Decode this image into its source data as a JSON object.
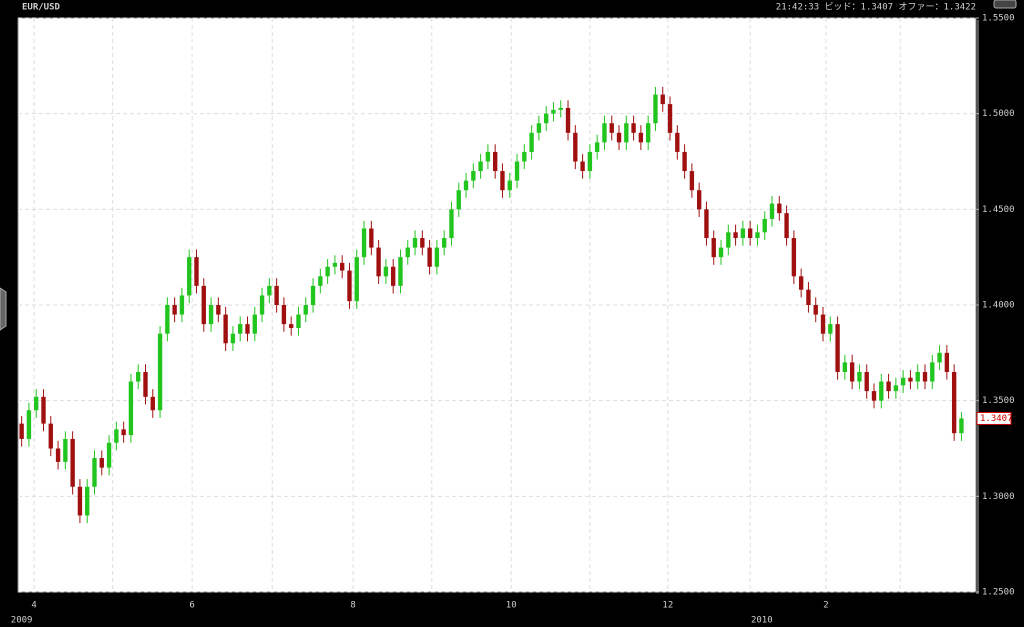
{
  "chart_data": {
    "type": "candlestick",
    "symbol": "EUR/USD",
    "status": "21:42:33 ビッド：1.3407 オファー：1.3422",
    "price_tag": "1.3407",
    "up_color": "#22c41e",
    "down_color": "#a01010",
    "grid": true,
    "xlim": [
      -0.5,
      131
    ],
    "xticks": [
      {
        "value": 1.7,
        "label": "4"
      },
      {
        "value": 23.4,
        "label": "6"
      },
      {
        "value": 45.5,
        "label": "8"
      },
      {
        "value": 67.2,
        "label": "10"
      },
      {
        "value": 88.7,
        "label": "12"
      },
      {
        "value": 110.4,
        "label": "2"
      }
    ],
    "xminor": [
      12.5,
      34.4,
      56.3,
      78.0,
      100.0,
      120.6
    ],
    "year_labels": [
      {
        "value": 0,
        "label": "2009"
      },
      {
        "value": 101.6,
        "label": "2010"
      }
    ],
    "ylim": [
      1.25,
      1.55
    ],
    "yticks": [
      {
        "value": 1.25,
        "label": "1.2500"
      },
      {
        "value": 1.3,
        "label": "1.3000"
      },
      {
        "value": 1.35,
        "label": "1.3500"
      },
      {
        "value": 1.4,
        "label": "1.4000"
      },
      {
        "value": 1.45,
        "label": "1.4500"
      },
      {
        "value": 1.5,
        "label": "1.5000"
      },
      {
        "value": 1.55,
        "label": "1.5500"
      }
    ],
    "open": [
      1.338,
      1.33,
      1.345,
      1.352,
      1.338,
      1.325,
      1.318,
      1.33,
      1.305,
      1.29,
      1.305,
      1.32,
      1.315,
      1.328,
      1.335,
      1.332,
      1.36,
      1.365,
      1.352,
      1.345,
      1.385,
      1.4,
      1.395,
      1.405,
      1.425,
      1.41,
      1.39,
      1.4,
      1.395,
      1.38,
      1.385,
      1.39,
      1.385,
      1.395,
      1.405,
      1.41,
      1.4,
      1.39,
      1.388,
      1.395,
      1.4,
      1.41,
      1.415,
      1.42,
      1.422,
      1.418,
      1.402,
      1.425,
      1.44,
      1.43,
      1.415,
      1.42,
      1.41,
      1.425,
      1.43,
      1.435,
      1.43,
      1.42,
      1.43,
      1.435,
      1.45,
      1.46,
      1.465,
      1.47,
      1.475,
      1.48,
      1.47,
      1.46,
      1.465,
      1.475,
      1.48,
      1.49,
      1.495,
      1.5,
      1.502,
      1.503,
      1.49,
      1.475,
      1.47,
      1.48,
      1.485,
      1.495,
      1.49,
      1.485,
      1.495,
      1.49,
      1.485,
      1.495,
      1.51,
      1.505,
      1.49,
      1.48,
      1.47,
      1.46,
      1.45,
      1.435,
      1.425,
      1.43,
      1.438,
      1.435,
      1.44,
      1.435,
      1.438,
      1.445,
      1.453,
      1.448,
      1.435,
      1.415,
      1.408,
      1.4,
      1.395,
      1.385,
      1.39,
      1.365,
      1.37,
      1.36,
      1.365,
      1.355,
      1.35,
      1.36,
      1.355,
      1.358,
      1.362,
      1.36,
      1.365,
      1.36,
      1.37,
      1.375,
      1.365,
      1.333
    ],
    "high": [
      1.342,
      1.349,
      1.356,
      1.356,
      1.342,
      1.329,
      1.334,
      1.334,
      1.309,
      1.309,
      1.324,
      1.324,
      1.332,
      1.339,
      1.339,
      1.364,
      1.369,
      1.369,
      1.356,
      1.389,
      1.404,
      1.404,
      1.409,
      1.429,
      1.429,
      1.414,
      1.404,
      1.404,
      1.399,
      1.389,
      1.394,
      1.394,
      1.399,
      1.409,
      1.414,
      1.414,
      1.404,
      1.394,
      1.399,
      1.404,
      1.414,
      1.419,
      1.424,
      1.426,
      1.426,
      1.422,
      1.429,
      1.444,
      1.444,
      1.434,
      1.424,
      1.424,
      1.429,
      1.434,
      1.439,
      1.439,
      1.434,
      1.434,
      1.439,
      1.454,
      1.464,
      1.469,
      1.474,
      1.479,
      1.484,
      1.484,
      1.474,
      1.469,
      1.479,
      1.484,
      1.494,
      1.499,
      1.504,
      1.506,
      1.507,
      1.507,
      1.494,
      1.479,
      1.484,
      1.489,
      1.499,
      1.499,
      1.494,
      1.499,
      1.499,
      1.494,
      1.499,
      1.514,
      1.514,
      1.509,
      1.494,
      1.484,
      1.474,
      1.464,
      1.454,
      1.439,
      1.434,
      1.442,
      1.442,
      1.444,
      1.444,
      1.442,
      1.449,
      1.457,
      1.457,
      1.452,
      1.439,
      1.419,
      1.412,
      1.404,
      1.399,
      1.394,
      1.394,
      1.374,
      1.374,
      1.369,
      1.369,
      1.359,
      1.364,
      1.364,
      1.362,
      1.366,
      1.366,
      1.369,
      1.369,
      1.374,
      1.379,
      1.379,
      1.369,
      1.344
    ],
    "low": [
      1.326,
      1.326,
      1.341,
      1.334,
      1.321,
      1.314,
      1.314,
      1.301,
      1.286,
      1.286,
      1.301,
      1.311,
      1.311,
      1.324,
      1.328,
      1.328,
      1.356,
      1.348,
      1.341,
      1.341,
      1.381,
      1.391,
      1.391,
      1.401,
      1.406,
      1.386,
      1.386,
      1.391,
      1.376,
      1.376,
      1.381,
      1.381,
      1.381,
      1.391,
      1.401,
      1.396,
      1.386,
      1.384,
      1.384,
      1.391,
      1.396,
      1.406,
      1.411,
      1.416,
      1.414,
      1.398,
      1.398,
      1.421,
      1.426,
      1.411,
      1.411,
      1.406,
      1.406,
      1.421,
      1.426,
      1.426,
      1.416,
      1.416,
      1.426,
      1.431,
      1.446,
      1.456,
      1.461,
      1.466,
      1.471,
      1.466,
      1.456,
      1.456,
      1.461,
      1.471,
      1.476,
      1.486,
      1.491,
      1.496,
      1.498,
      1.486,
      1.471,
      1.466,
      1.466,
      1.476,
      1.481,
      1.486,
      1.481,
      1.481,
      1.486,
      1.481,
      1.481,
      1.491,
      1.501,
      1.486,
      1.476,
      1.466,
      1.456,
      1.446,
      1.431,
      1.421,
      1.421,
      1.426,
      1.431,
      1.431,
      1.431,
      1.431,
      1.434,
      1.441,
      1.444,
      1.431,
      1.411,
      1.404,
      1.396,
      1.391,
      1.381,
      1.381,
      1.361,
      1.361,
      1.356,
      1.356,
      1.351,
      1.346,
      1.346,
      1.351,
      1.351,
      1.354,
      1.356,
      1.356,
      1.356,
      1.356,
      1.366,
      1.361,
      1.329,
      1.329
    ],
    "close": [
      1.33,
      1.345,
      1.352,
      1.338,
      1.325,
      1.318,
      1.33,
      1.305,
      1.29,
      1.305,
      1.32,
      1.315,
      1.328,
      1.335,
      1.332,
      1.36,
      1.365,
      1.352,
      1.345,
      1.385,
      1.4,
      1.395,
      1.405,
      1.425,
      1.41,
      1.39,
      1.4,
      1.395,
      1.38,
      1.385,
      1.39,
      1.385,
      1.395,
      1.405,
      1.41,
      1.4,
      1.39,
      1.388,
      1.395,
      1.4,
      1.41,
      1.415,
      1.42,
      1.422,
      1.418,
      1.402,
      1.425,
      1.44,
      1.43,
      1.415,
      1.42,
      1.41,
      1.425,
      1.43,
      1.435,
      1.43,
      1.42,
      1.43,
      1.435,
      1.45,
      1.46,
      1.465,
      1.47,
      1.475,
      1.48,
      1.47,
      1.46,
      1.465,
      1.475,
      1.48,
      1.49,
      1.495,
      1.5,
      1.502,
      1.503,
      1.49,
      1.475,
      1.47,
      1.48,
      1.485,
      1.495,
      1.49,
      1.485,
      1.495,
      1.49,
      1.485,
      1.495,
      1.51,
      1.505,
      1.49,
      1.48,
      1.47,
      1.46,
      1.45,
      1.435,
      1.425,
      1.43,
      1.438,
      1.435,
      1.44,
      1.435,
      1.438,
      1.445,
      1.453,
      1.448,
      1.435,
      1.415,
      1.408,
      1.4,
      1.395,
      1.385,
      1.39,
      1.365,
      1.37,
      1.36,
      1.365,
      1.355,
      1.35,
      1.36,
      1.355,
      1.358,
      1.362,
      1.36,
      1.365,
      1.36,
      1.37,
      1.375,
      1.365,
      1.333,
      1.3407
    ]
  }
}
